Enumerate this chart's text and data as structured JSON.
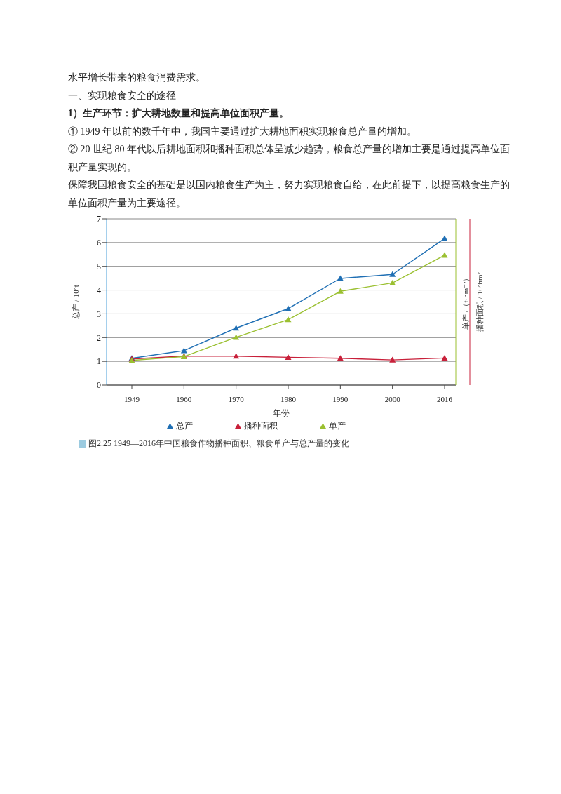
{
  "chart_data": {
    "type": "line",
    "annotations": [
      "水平增长带来的粮食消费需求。",
      "一、实现粮食安全的途径",
      "1）生产环节：扩大耕地数量和提高单位面积产量。",
      "① 1949 年以前的数千年中，我国主要通过扩大耕地面积实现粮食总产量的增加。",
      "② 20  世纪 80 年代以后耕地面积和播种面积总体呈减少趋势，粮食总产量的增加主要是通过提高单位面积产量实现的。",
      "保障我国粮食安全的基础是以国内粮食生产为主，努力实现粮食自给，在此前提下，以提高粮食生产的单位面积产量为主要途径。",
      "图2.25   1949—2016年中国粮食作物播种面积、粮食单产与总产量的变化"
    ],
    "xlabel": "年份",
    "ylabel": "总产 / 10⁸t",
    "y2label": "单产 /（t·hm⁻²）",
    "y3label": "播种面积 / 10⁸hm²",
    "categories": [
      "1949",
      "1960",
      "1970",
      "1980",
      "1990",
      "2000",
      "2016"
    ],
    "series": [
      {
        "name": "总产",
        "color": "#1f6fb4",
        "values": [
          1.13,
          1.45,
          2.4,
          3.22,
          4.49,
          4.66,
          6.17
        ]
      },
      {
        "name": "播种面积",
        "color": "#c8203a",
        "values": [
          1.1,
          1.22,
          1.22,
          1.17,
          1.13,
          1.06,
          1.14
        ]
      },
      {
        "name": "单产",
        "color": "#9bc031",
        "values": [
          1.04,
          1.2,
          2.01,
          2.76,
          3.95,
          4.3,
          5.47
        ]
      }
    ],
    "ylim": [
      0,
      7
    ],
    "yticks": [
      0,
      1,
      2,
      3,
      4,
      5,
      6,
      7
    ],
    "tick_labels": "xy",
    "grid": "y",
    "legend": "bottom",
    "marker": "triangle",
    "line_style": "solid"
  }
}
